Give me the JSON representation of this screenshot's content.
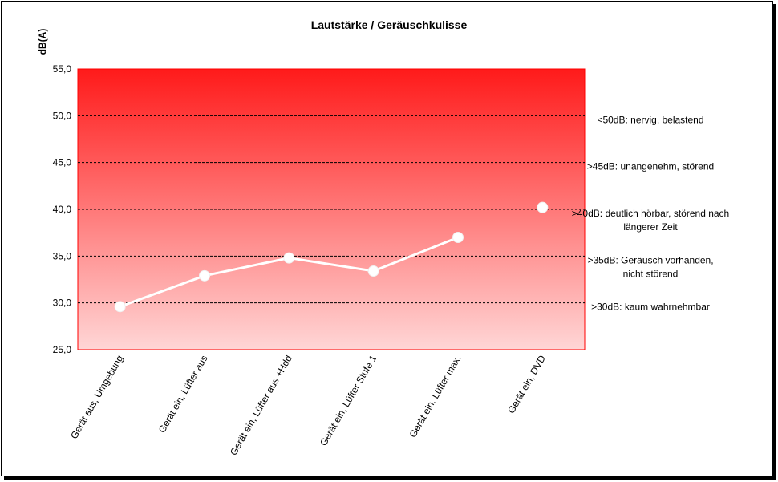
{
  "chart_data": {
    "type": "line",
    "title": "Lautstärke / Geräuschkulisse",
    "ylabel": "dB(A)",
    "xlabel": "",
    "ylim": [
      25,
      55
    ],
    "yticks": [
      "25,0",
      "30,0",
      "35,0",
      "40,0",
      "45,0",
      "50,0",
      "55,0"
    ],
    "categories": [
      "Gerät aus, Umgebung",
      "Gerät ein, Lüfter aus",
      "Gerät ein, Lüfter aus +Hdd",
      "Gerät ein, Lüfter Stufe 1",
      "Gerät ein, Lüfter max.",
      "Gerät ein, DVD"
    ],
    "series": [
      {
        "values": [
          29.6,
          32.9,
          34.8,
          33.4,
          37.0,
          40.2
        ],
        "connect_last": false
      }
    ],
    "grid": true,
    "annotations": [
      {
        "y": 50,
        "lines": [
          "<50dB: nervig, belastend"
        ]
      },
      {
        "y": 45,
        "lines": [
          ">45dB: unangenehm, störend"
        ]
      },
      {
        "y": 40,
        "lines": [
          ">40dB: deutlich hörbar, störend nach",
          "längerer Zeit"
        ]
      },
      {
        "y": 35,
        "lines": [
          ">35dB: Geräusch vorhanden,",
          "nicht störend"
        ]
      },
      {
        "y": 30,
        "lines": [
          ">30dB: kaum wahrnehmbar"
        ]
      }
    ],
    "colors": {
      "gradient_top": "#ff1a1a",
      "gradient_bottom": "#ffd6d6",
      "plot_border": "#ff0000",
      "line": "#ffffff",
      "marker": "#ffffff",
      "grid": "#000000"
    }
  }
}
